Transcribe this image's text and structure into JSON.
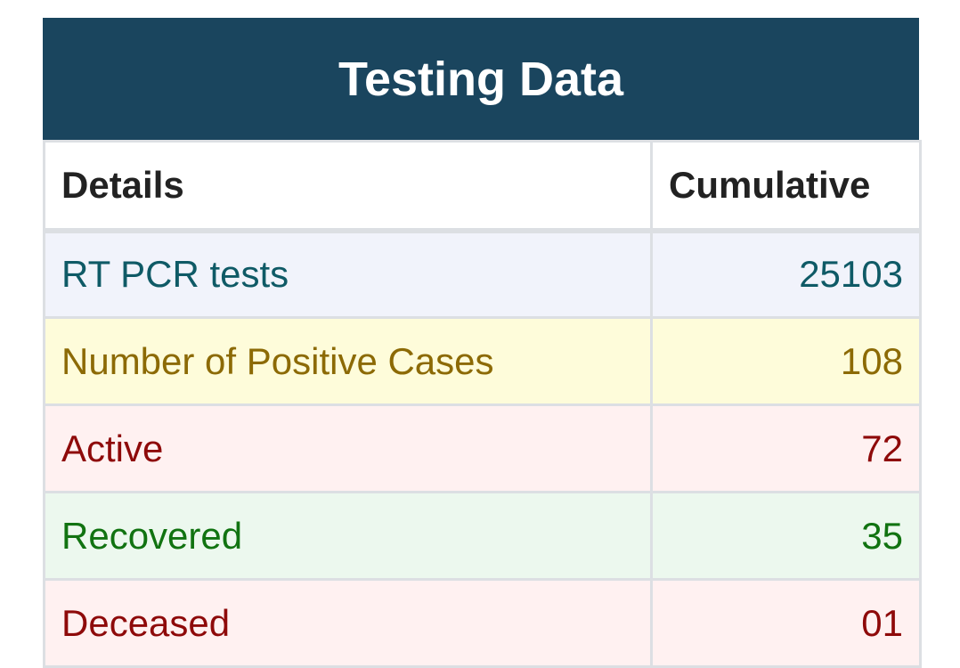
{
  "title": "Testing Data",
  "columns": {
    "details": "Details",
    "cumulative": "Cumulative"
  },
  "rows": [
    {
      "label": "RT PCR tests",
      "value": "25103",
      "bg": "#f1f3fb",
      "color": "#0f5a66"
    },
    {
      "label": "Number of Positive Cases",
      "value": "108",
      "bg": "#fefcda",
      "color": "#8c6a05"
    },
    {
      "label": "Active",
      "value": "72",
      "bg": "#fff1f1",
      "color": "#8e0a0a"
    },
    {
      "label": "Recovered",
      "value": "35",
      "bg": "#ecf8ee",
      "color": "#117311"
    },
    {
      "label": "Deceased",
      "value": "01",
      "bg": "#fff1f1",
      "color": "#8e0a0a"
    }
  ]
}
